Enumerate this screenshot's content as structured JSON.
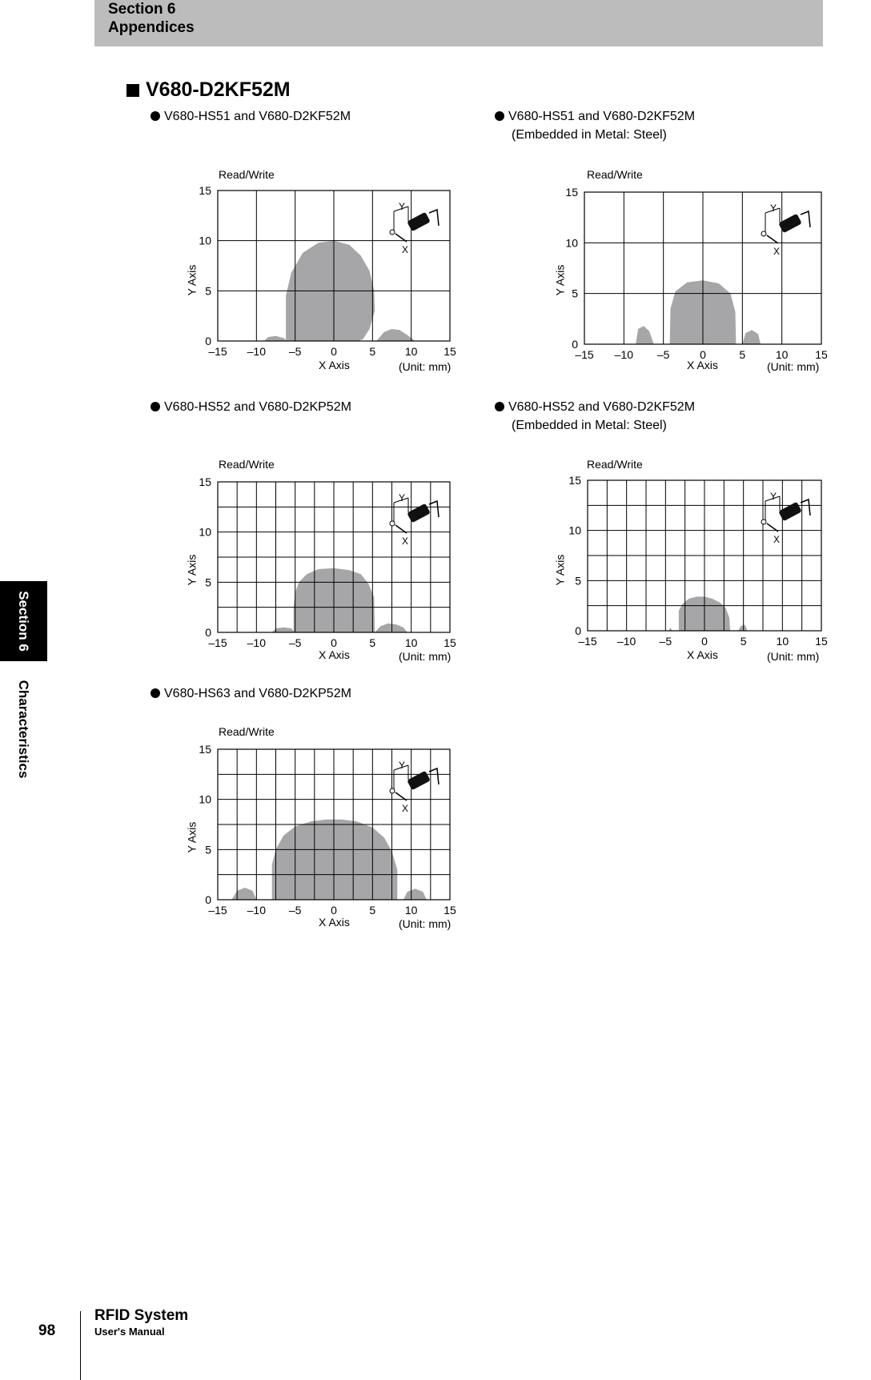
{
  "header": {
    "section": "Section 6",
    "subtitle": "Appendices"
  },
  "side_tab": {
    "section": "Section 6",
    "topic": "Characteristics"
  },
  "heading": "V680-D2KF52M",
  "footer": {
    "page_number": "98",
    "title": "RFID System",
    "subtitle": "User's Manual"
  },
  "charts": [
    {
      "caption_line1": "V680-HS51 and V680-D2KF52M",
      "caption_line2": ""
    },
    {
      "caption_line1": "V680-HS51 and V680-D2KF52M",
      "caption_line2": "(Embedded in Metal: Steel)"
    },
    {
      "caption_line1": "V680-HS52 and V680-D2KP52M",
      "caption_line2": ""
    },
    {
      "caption_line1": "V680-HS52 and V680-D2KF52M",
      "caption_line2": "(Embedded in Metal: Steel)"
    },
    {
      "caption_line1": "V680-HS63 and V680-D2KP52M",
      "caption_line2": ""
    }
  ],
  "chart_data": [
    {
      "type": "area",
      "title": "Read/Write",
      "xlabel": "X Axis",
      "ylabel": "Y Axis",
      "unit_note": "(Unit: mm)",
      "xlim": [
        -15,
        15
      ],
      "ylim": [
        0,
        15
      ],
      "xticks": [
        "–15",
        "–10",
        "–5",
        "0",
        "5",
        "10",
        "15"
      ],
      "yticks": [
        "0",
        "5",
        "10",
        "15"
      ],
      "grid_x_step": 5,
      "grid_y_step": 5,
      "grid": true,
      "fill_color": "#a6a6a8",
      "lobes": [
        {
          "x": [
            -9,
            -8.5,
            -7.5,
            -6.5,
            -6
          ],
          "y": [
            0,
            0.4,
            0.5,
            0.3,
            0
          ]
        },
        {
          "x": [
            -6.2,
            -6.2,
            -5.5,
            -4,
            -2,
            0,
            2,
            3.5,
            4.6,
            5.2,
            5.3,
            4.6,
            3.8,
            3.2
          ],
          "y": [
            0,
            4.5,
            6.8,
            8.8,
            9.8,
            10,
            9.6,
            8.5,
            7,
            5,
            3,
            1.2,
            0.2,
            0
          ]
        },
        {
          "x": [
            5.5,
            6.5,
            7.5,
            8.5,
            9.5,
            10.5
          ],
          "y": [
            0,
            0.9,
            1.2,
            1.1,
            0.6,
            0
          ]
        }
      ]
    },
    {
      "type": "area",
      "title": "Read/Write",
      "xlabel": "X Axis",
      "ylabel": "Y Axis",
      "unit_note": "(Unit: mm)",
      "xlim": [
        -15,
        15
      ],
      "ylim": [
        0,
        15
      ],
      "xticks": [
        "–15",
        "–10",
        "–5",
        "0",
        "5",
        "10",
        "15"
      ],
      "yticks": [
        "0",
        "5",
        "10",
        "15"
      ],
      "grid_x_step": 5,
      "grid_y_step": 5,
      "grid": true,
      "fill_color": "#a6a6a8",
      "lobes": [
        {
          "x": [
            -8.5,
            -8.2,
            -7.5,
            -6.8,
            -6.2
          ],
          "y": [
            0,
            1.5,
            1.8,
            1.3,
            0
          ]
        },
        {
          "x": [
            -4.2,
            -4.1,
            -3.5,
            -2,
            0,
            2,
            3.5,
            4.1,
            4.2
          ],
          "y": [
            0,
            3.5,
            5.2,
            6.1,
            6.3,
            6,
            5,
            3.2,
            0
          ]
        },
        {
          "x": [
            5,
            5.4,
            6.2,
            7,
            7.3
          ],
          "y": [
            0,
            1.1,
            1.4,
            1,
            0
          ]
        }
      ]
    },
    {
      "type": "area",
      "title": "Read/Write",
      "xlabel": "X Axis",
      "ylabel": "Y Axis",
      "unit_note": "(Unit: mm)",
      "xlim": [
        -15,
        15
      ],
      "ylim": [
        0,
        15
      ],
      "xticks": [
        "–15",
        "–10",
        "–5",
        "0",
        "5",
        "10",
        "15"
      ],
      "yticks": [
        "0",
        "5",
        "10",
        "15"
      ],
      "grid_x_step": 2.5,
      "grid_y_step": 2.5,
      "grid": true,
      "fill_color": "#a6a6a8",
      "lobes": [
        {
          "x": [
            -8,
            -7.5,
            -6.5,
            -5.5,
            -5
          ],
          "y": [
            0,
            0.4,
            0.5,
            0.4,
            0
          ]
        },
        {
          "x": [
            -5.2,
            -5.2,
            -5,
            -4.5,
            -3.5,
            -2,
            0,
            2,
            3.5,
            4.5,
            5.2,
            5.3
          ],
          "y": [
            0,
            2.5,
            4,
            5,
            5.8,
            6.3,
            6.4,
            6.2,
            5.8,
            4.8,
            3.5,
            0
          ]
        },
        {
          "x": [
            5.3,
            6,
            7,
            8,
            9,
            9.5
          ],
          "y": [
            0,
            0.6,
            0.9,
            0.8,
            0.5,
            0
          ]
        }
      ]
    },
    {
      "type": "area",
      "title": "Read/Write",
      "xlabel": "X Axis",
      "ylabel": "Y Axis",
      "unit_note": "(Unit: mm)",
      "xlim": [
        -15,
        15
      ],
      "ylim": [
        0,
        15
      ],
      "xticks": [
        "–15",
        "–10",
        "–5",
        "0",
        "5",
        "10",
        "15"
      ],
      "yticks": [
        "0",
        "5",
        "10",
        "15"
      ],
      "grid_x_step": 2.5,
      "grid_y_step": 2.5,
      "grid": true,
      "fill_color": "#a6a6a8",
      "lobes": [
        {
          "x": [
            -4.6,
            -4.4,
            -4.1
          ],
          "y": [
            0,
            0.3,
            0
          ]
        },
        {
          "x": [
            -3.3,
            -3.3,
            -2.8,
            -2,
            -1,
            0,
            1,
            2,
            2.7,
            3.2,
            3.3
          ],
          "y": [
            0,
            2,
            2.7,
            3.2,
            3.4,
            3.4,
            3.2,
            2.8,
            2.3,
            1.3,
            0
          ]
        },
        {
          "x": [
            4.3,
            4.7,
            5.2,
            5.5
          ],
          "y": [
            0,
            0.5,
            0.6,
            0
          ]
        }
      ]
    },
    {
      "type": "area",
      "title": "Read/Write",
      "xlabel": "X Axis",
      "ylabel": "Y Axis",
      "unit_note": "(Unit: mm)",
      "xlim": [
        -15,
        15
      ],
      "ylim": [
        0,
        15
      ],
      "xticks": [
        "–15",
        "–10",
        "–5",
        "0",
        "5",
        "10",
        "15"
      ],
      "yticks": [
        "0",
        "5",
        "10",
        "15"
      ],
      "grid_x_step": 2.5,
      "grid_y_step": 2.5,
      "grid": true,
      "fill_color": "#a6a6a8",
      "lobes": [
        {
          "x": [
            -13.2,
            -12.5,
            -11.5,
            -10.5,
            -10
          ],
          "y": [
            0,
            0.9,
            1.2,
            0.9,
            0
          ]
        },
        {
          "x": [
            -8,
            -8,
            -7.5,
            -6.5,
            -5,
            -3,
            -1,
            1,
            3,
            5,
            6.5,
            7.5,
            8.2,
            8.2
          ],
          "y": [
            0,
            3.5,
            5,
            6.4,
            7.3,
            7.8,
            8,
            8,
            7.8,
            7.2,
            6.2,
            4.8,
            3,
            0
          ]
        },
        {
          "x": [
            9,
            9.5,
            10.5,
            11.5,
            12
          ],
          "y": [
            0,
            0.8,
            1.1,
            0.8,
            0
          ]
        }
      ]
    }
  ]
}
